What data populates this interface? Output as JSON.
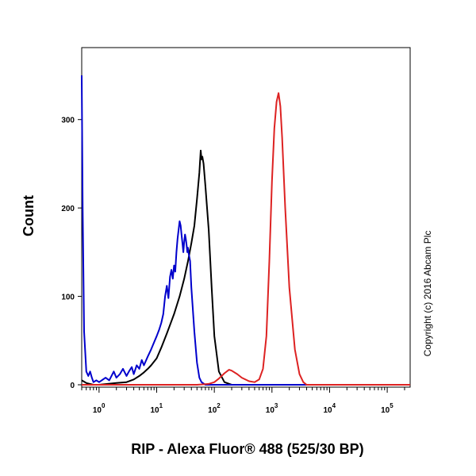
{
  "chart_data": {
    "type": "line",
    "xlabel": "RIP - Alexa Fluor® 488 (525/30 BP)",
    "ylabel": "Count",
    "x_scale": "log",
    "xlim": [
      0.5,
      250000
    ],
    "ylim": [
      0,
      350
    ],
    "x_ticks": [
      {
        "value": 1,
        "base": "10",
        "exp": "0"
      },
      {
        "value": 10,
        "base": "10",
        "exp": "1"
      },
      {
        "value": 100,
        "base": "10",
        "exp": "2"
      },
      {
        "value": 1000,
        "base": "10",
        "exp": "3"
      },
      {
        "value": 10000,
        "base": "10",
        "exp": "4"
      },
      {
        "value": 100000,
        "base": "10",
        "exp": "5"
      }
    ],
    "y_ticks": [
      0,
      100,
      200,
      300
    ],
    "copyright": "Copyright (c) 2016 Abcam Plc",
    "series": [
      {
        "color": "#000000",
        "points": [
          [
            0.5,
            5
          ],
          [
            0.6,
            2
          ],
          [
            0.8,
            0
          ],
          [
            1,
            0
          ],
          [
            2,
            2
          ],
          [
            3,
            3
          ],
          [
            4,
            6
          ],
          [
            5,
            10
          ],
          [
            6,
            14
          ],
          [
            7,
            18
          ],
          [
            8,
            22
          ],
          [
            10,
            30
          ],
          [
            12,
            42
          ],
          [
            15,
            58
          ],
          [
            18,
            72
          ],
          [
            20,
            80
          ],
          [
            25,
            100
          ],
          [
            30,
            120
          ],
          [
            35,
            140
          ],
          [
            40,
            160
          ],
          [
            45,
            180
          ],
          [
            50,
            210
          ],
          [
            55,
            240
          ],
          [
            58,
            265
          ],
          [
            60,
            255
          ],
          [
            62,
            258
          ],
          [
            65,
            250
          ],
          [
            70,
            225
          ],
          [
            80,
            175
          ],
          [
            90,
            110
          ],
          [
            100,
            55
          ],
          [
            120,
            15
          ],
          [
            150,
            3
          ],
          [
            200,
            0
          ],
          [
            1000,
            0
          ],
          [
            10000,
            0
          ],
          [
            250000,
            0
          ]
        ]
      },
      {
        "color": "#0000cc",
        "points": [
          [
            0.5,
            350
          ],
          [
            0.52,
            200
          ],
          [
            0.55,
            60
          ],
          [
            0.6,
            15
          ],
          [
            0.65,
            10
          ],
          [
            0.7,
            15
          ],
          [
            0.75,
            8
          ],
          [
            0.8,
            3
          ],
          [
            0.9,
            5
          ],
          [
            1,
            3
          ],
          [
            1.3,
            8
          ],
          [
            1.5,
            5
          ],
          [
            1.8,
            15
          ],
          [
            2,
            8
          ],
          [
            2.3,
            12
          ],
          [
            2.6,
            18
          ],
          [
            3,
            10
          ],
          [
            3.3,
            15
          ],
          [
            3.7,
            20
          ],
          [
            4,
            12
          ],
          [
            4.5,
            22
          ],
          [
            5,
            18
          ],
          [
            5.5,
            28
          ],
          [
            6,
            22
          ],
          [
            7,
            32
          ],
          [
            8,
            40
          ],
          [
            9,
            48
          ],
          [
            10,
            55
          ],
          [
            11,
            62
          ],
          [
            12,
            70
          ],
          [
            13,
            80
          ],
          [
            14,
            100
          ],
          [
            15,
            112
          ],
          [
            16,
            98
          ],
          [
            17,
            122
          ],
          [
            18,
            130
          ],
          [
            19,
            120
          ],
          [
            20,
            135
          ],
          [
            21,
            128
          ],
          [
            22,
            150
          ],
          [
            23,
            165
          ],
          [
            24,
            175
          ],
          [
            25,
            185
          ],
          [
            26,
            180
          ],
          [
            27,
            170
          ],
          [
            28,
            160
          ],
          [
            29,
            150
          ],
          [
            30,
            162
          ],
          [
            31,
            170
          ],
          [
            32,
            165
          ],
          [
            33,
            158
          ],
          [
            34,
            150
          ],
          [
            35,
            155
          ],
          [
            36,
            148
          ],
          [
            38,
            140
          ],
          [
            40,
            110
          ],
          [
            45,
            60
          ],
          [
            50,
            25
          ],
          [
            55,
            8
          ],
          [
            60,
            3
          ],
          [
            70,
            0
          ],
          [
            80,
            0
          ],
          [
            250000,
            0
          ]
        ]
      },
      {
        "color": "#dd2222",
        "points": [
          [
            0.5,
            0
          ],
          [
            30,
            0
          ],
          [
            50,
            0
          ],
          [
            80,
            1
          ],
          [
            100,
            3
          ],
          [
            120,
            7
          ],
          [
            150,
            13
          ],
          [
            180,
            17
          ],
          [
            200,
            16
          ],
          [
            250,
            12
          ],
          [
            300,
            8
          ],
          [
            400,
            4
          ],
          [
            500,
            3
          ],
          [
            600,
            6
          ],
          [
            700,
            18
          ],
          [
            800,
            55
          ],
          [
            900,
            140
          ],
          [
            1000,
            230
          ],
          [
            1100,
            290
          ],
          [
            1200,
            320
          ],
          [
            1300,
            330
          ],
          [
            1400,
            315
          ],
          [
            1500,
            280
          ],
          [
            1700,
            200
          ],
          [
            2000,
            110
          ],
          [
            2500,
            40
          ],
          [
            3000,
            12
          ],
          [
            3500,
            3
          ],
          [
            4000,
            0
          ],
          [
            250000,
            0
          ]
        ]
      }
    ]
  }
}
